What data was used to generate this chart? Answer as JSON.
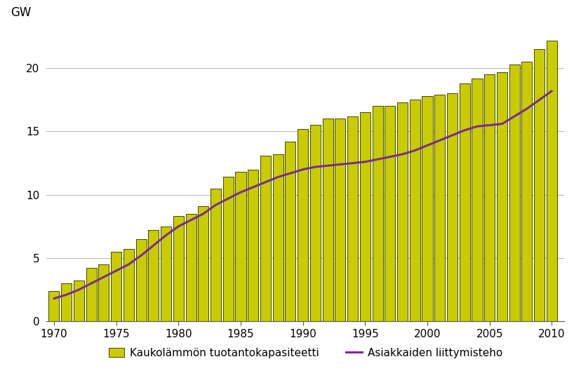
{
  "years": [
    1970,
    1971,
    1972,
    1973,
    1974,
    1975,
    1976,
    1977,
    1978,
    1979,
    1980,
    1981,
    1982,
    1983,
    1984,
    1985,
    1986,
    1987,
    1988,
    1989,
    1990,
    1991,
    1992,
    1993,
    1994,
    1995,
    1996,
    1997,
    1998,
    1999,
    2000,
    2001,
    2002,
    2003,
    2004,
    2005,
    2006,
    2007,
    2008,
    2009,
    2010
  ],
  "bar_values": [
    2.4,
    3.0,
    3.2,
    4.2,
    4.5,
    5.5,
    5.7,
    6.5,
    7.2,
    7.5,
    8.3,
    8.5,
    9.1,
    10.5,
    11.4,
    11.8,
    12.0,
    13.1,
    13.2,
    14.2,
    15.2,
    15.5,
    16.0,
    16.0,
    16.2,
    16.5,
    17.0,
    17.0,
    17.3,
    17.5,
    17.8,
    17.9,
    18.0,
    18.8,
    19.2,
    19.5,
    19.7,
    20.3,
    20.5,
    21.5,
    22.2
  ],
  "line_values": [
    1.8,
    2.1,
    2.5,
    3.0,
    3.5,
    4.0,
    4.5,
    5.2,
    6.0,
    6.8,
    7.5,
    8.0,
    8.5,
    9.2,
    9.7,
    10.2,
    10.6,
    11.0,
    11.4,
    11.7,
    12.0,
    12.2,
    12.3,
    12.4,
    12.5,
    12.6,
    12.8,
    13.0,
    13.2,
    13.5,
    13.9,
    14.3,
    14.7,
    15.1,
    15.4,
    15.5,
    15.6,
    16.2,
    16.8,
    17.5,
    18.2
  ],
  "bar_color": "#c8cc00",
  "bar_edge_color": "#444400",
  "line_color": "#7b2d8b",
  "ylabel": "GW",
  "ylim": [
    0,
    23
  ],
  "yticks": [
    0,
    5,
    10,
    15,
    20
  ],
  "xticks": [
    1970,
    1975,
    1980,
    1985,
    1990,
    1995,
    2000,
    2005,
    2010
  ],
  "xlim_left": 1969.4,
  "xlim_right": 2011.0,
  "legend_bar_label": "Kaukolämmön tuotantokapasiteetti",
  "legend_line_label": "Asiakkaiden liittymisteho",
  "grid_color": "#aaaaaa",
  "background_color": "#ffffff",
  "bar_width": 0.85
}
